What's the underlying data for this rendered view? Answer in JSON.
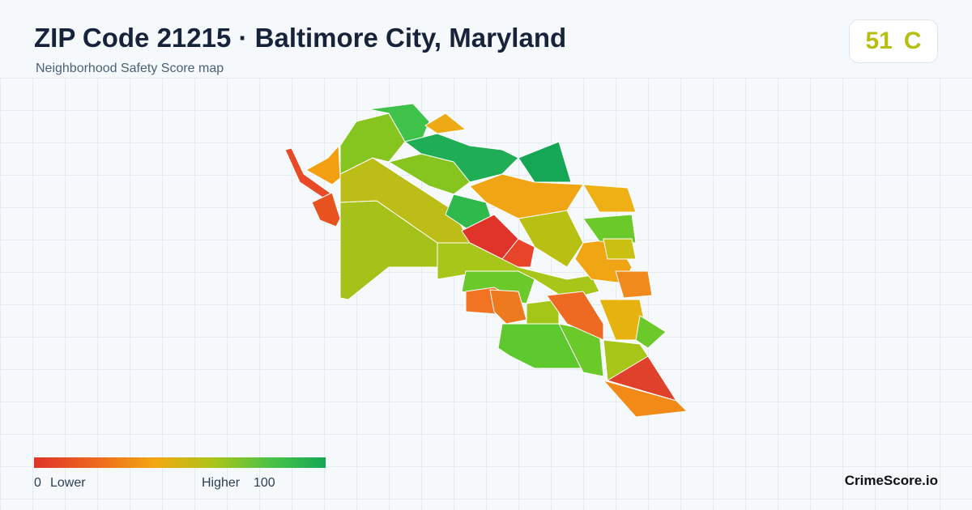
{
  "header": {
    "title": "ZIP Code 21215 · Baltimore City, Maryland",
    "subtitle": "Neighborhood Safety Score map"
  },
  "score": {
    "value": 51,
    "grade": "C"
  },
  "legend": {
    "min": 0,
    "low_label": "Lower",
    "high_label": "Higher",
    "max": 100
  },
  "brand": "CrimeScore.io"
}
